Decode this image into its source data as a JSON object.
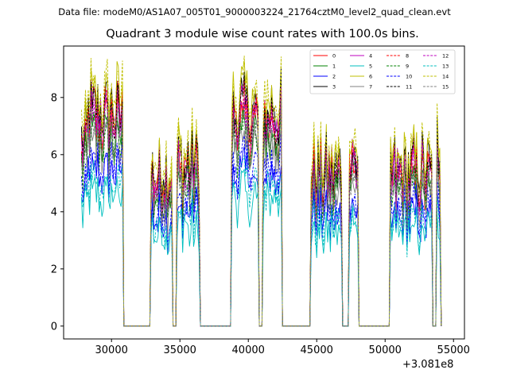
{
  "header": {
    "suptitle": "Data file: modeM0/AS1A07_005T01_9000003224_21764cztM0_level2_quad_clean.evt",
    "title": "Quadrant 3 module wise count rates with 100.0s bins."
  },
  "chart_data": {
    "type": "line",
    "x_offset_label": "+3.081e8",
    "xlim": [
      26500,
      55800
    ],
    "ylim": [
      -0.45,
      9.8
    ],
    "xticks": [
      30000,
      35000,
      40000,
      45000,
      50000,
      55000
    ],
    "xtick_labels": [
      "30000",
      "35000",
      "40000",
      "45000",
      "50000",
      "55000"
    ],
    "yticks": [
      0,
      2,
      4,
      6,
      8
    ],
    "ytick_labels": [
      "0",
      "2",
      "4",
      "6",
      "8"
    ],
    "legend_position": "top-right",
    "legend": [
      {
        "name": "0",
        "color": "#ff0000",
        "dash": "solid"
      },
      {
        "name": "1",
        "color": "#008000",
        "dash": "solid"
      },
      {
        "name": "2",
        "color": "#0000ff",
        "dash": "solid"
      },
      {
        "name": "3",
        "color": "#000000",
        "dash": "solid"
      },
      {
        "name": "4",
        "color": "#bf00bf",
        "dash": "solid"
      },
      {
        "name": "5",
        "color": "#00bfbf",
        "dash": "solid"
      },
      {
        "name": "6",
        "color": "#bfbf00",
        "dash": "solid"
      },
      {
        "name": "7",
        "color": "#808080",
        "dash": "solid"
      },
      {
        "name": "8",
        "color": "#ff0000",
        "dash": "dashed"
      },
      {
        "name": "9",
        "color": "#008000",
        "dash": "dashed"
      },
      {
        "name": "10",
        "color": "#0000ff",
        "dash": "dashed"
      },
      {
        "name": "11",
        "color": "#000000",
        "dash": "dashed"
      },
      {
        "name": "12",
        "color": "#bf00bf",
        "dash": "dashed"
      },
      {
        "name": "13",
        "color": "#00bfbf",
        "dash": "dashed"
      },
      {
        "name": "14",
        "color": "#bfbf00",
        "dash": "dashed"
      },
      {
        "name": "15",
        "color": "#808080",
        "dash": "dashed"
      }
    ],
    "segments": [
      {
        "x_start": 27800,
        "x_end": 28200,
        "level": 6.0
      },
      {
        "x_start": 28300,
        "x_end": 30800,
        "level": 7.0
      },
      {
        "x_start": 32900,
        "x_end": 34400,
        "level": 5.0
      },
      {
        "x_start": 34800,
        "x_end": 36400,
        "level": 5.3
      },
      {
        "x_start": 38800,
        "x_end": 40700,
        "level": 7.0
      },
      {
        "x_start": 41100,
        "x_end": 42400,
        "level": 7.0
      },
      {
        "x_start": 44600,
        "x_end": 46800,
        "level": 5.0
      },
      {
        "x_start": 47400,
        "x_end": 48000,
        "level": 5.5
      },
      {
        "x_start": 50400,
        "x_end": 53400,
        "level": 5.0
      },
      {
        "x_start": 53800,
        "x_end": 54000,
        "level": 6.0
      }
    ],
    "series_relative_levels": [
      1.0,
      0.95,
      0.75,
      1.08,
      1.05,
      0.65,
      1.12,
      0.9,
      1.04,
      0.92,
      0.8,
      1.05,
      1.0,
      0.7,
      1.15,
      0.93
    ]
  }
}
